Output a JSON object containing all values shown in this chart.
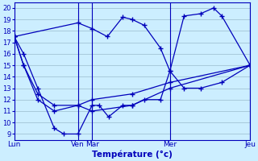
{
  "title": "",
  "xlabel": "Température (°c)",
  "bg_color": "#cceeff",
  "line_color": "#0000bb",
  "grid_color": "#99bbcc",
  "axis_color": "#0000bb",
  "tick_label_color": "#0000bb",
  "xlabel_color": "#0000bb",
  "ylim": [
    8.5,
    20.5
  ],
  "yticks": [
    9,
    10,
    11,
    12,
    13,
    14,
    15,
    16,
    17,
    18,
    19,
    20
  ],
  "xlim": [
    0,
    1
  ],
  "day_labels": [
    "Lun",
    "Ven",
    "Mar",
    "Mer",
    "Jeu"
  ],
  "day_positions": [
    0.0,
    0.27,
    0.33,
    0.66,
    1.0
  ],
  "vline_positions": [
    0.27,
    0.33,
    0.66,
    1.0
  ],
  "series": [
    {
      "x": [
        0.0,
        0.27,
        0.33,
        0.395,
        0.46,
        0.5,
        0.55,
        0.62,
        0.66,
        0.72,
        0.79,
        0.845,
        0.88,
        1.0
      ],
      "y": [
        17.5,
        18.7,
        18.2,
        17.5,
        19.2,
        19.0,
        18.5,
        16.5,
        14.5,
        19.3,
        19.5,
        20.0,
        19.3,
        15.0
      ]
    },
    {
      "x": [
        0.0,
        0.04,
        0.1,
        0.17,
        0.21,
        0.27,
        0.33,
        0.36,
        0.4,
        0.46,
        0.5,
        0.55,
        0.62,
        0.66,
        0.72,
        0.79,
        0.88,
        1.0
      ],
      "y": [
        17.5,
        16.0,
        13.0,
        9.5,
        9.0,
        9.0,
        11.5,
        11.5,
        10.5,
        11.5,
        11.5,
        12.0,
        12.0,
        14.5,
        13.0,
        13.0,
        13.5,
        15.0
      ]
    },
    {
      "x": [
        0.0,
        0.04,
        0.1,
        0.17,
        0.27,
        0.33,
        0.5,
        0.66,
        1.0
      ],
      "y": [
        17.5,
        15.0,
        12.5,
        11.5,
        11.5,
        12.0,
        12.5,
        13.5,
        15.0
      ]
    },
    {
      "x": [
        0.0,
        0.04,
        0.1,
        0.17,
        0.27,
        0.33,
        0.5,
        0.66,
        1.0
      ],
      "y": [
        17.5,
        15.0,
        12.0,
        11.0,
        11.5,
        11.0,
        11.5,
        13.0,
        15.0
      ]
    }
  ]
}
